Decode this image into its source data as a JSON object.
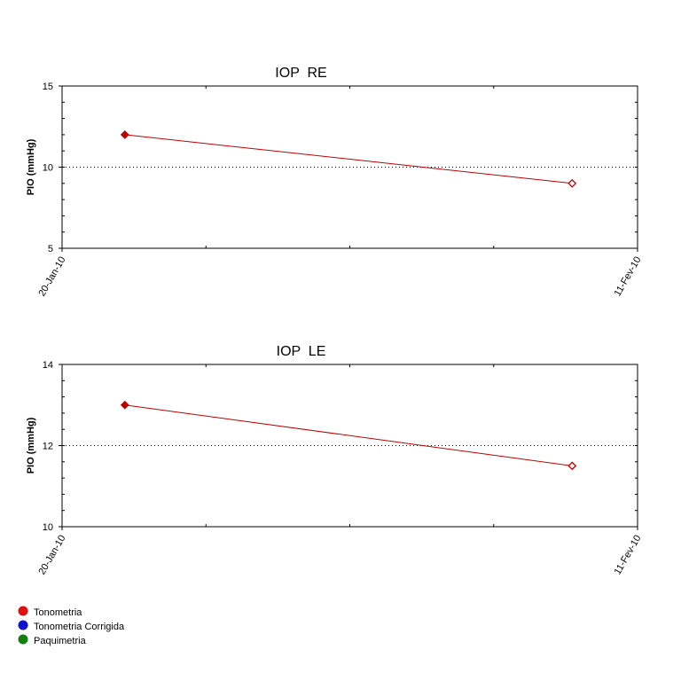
{
  "chart_data": [
    {
      "type": "line",
      "title": "IOP  RE",
      "y_label": "PIO (mmHg)",
      "x": [
        2.4,
        19.5
      ],
      "xlim": [
        0,
        22
      ],
      "xticks": [
        {
          "value": 0,
          "label": "20-Jan-10"
        },
        {
          "value": 22,
          "label": "11-Fev-10"
        }
      ],
      "ylim": [
        5,
        15
      ],
      "yticks": [
        5,
        10,
        15
      ],
      "grid": true,
      "series": [
        {
          "color": "#c00000",
          "values": [
            12,
            9
          ]
        }
      ]
    },
    {
      "type": "line",
      "title": "IOP  LE",
      "y_label": "PIO (mmHg)",
      "x": [
        2.4,
        19.5
      ],
      "xlim": [
        0,
        22
      ],
      "xticks": [
        {
          "value": 0,
          "label": "20-Jan-10"
        },
        {
          "value": 22,
          "label": "11-Fev-10"
        }
      ],
      "ylim": [
        10,
        14
      ],
      "yticks": [
        10,
        12,
        14
      ],
      "grid": true,
      "series": [
        {
          "color": "#c00000",
          "values": [
            13,
            11.5
          ]
        }
      ]
    }
  ],
  "legend": [
    {
      "name": "Tonometria",
      "color": "#e01010"
    },
    {
      "name": "Tonometria Corrigida",
      "color": "#1010d0"
    },
    {
      "name": "Paquimetria",
      "color": "#108010"
    }
  ]
}
